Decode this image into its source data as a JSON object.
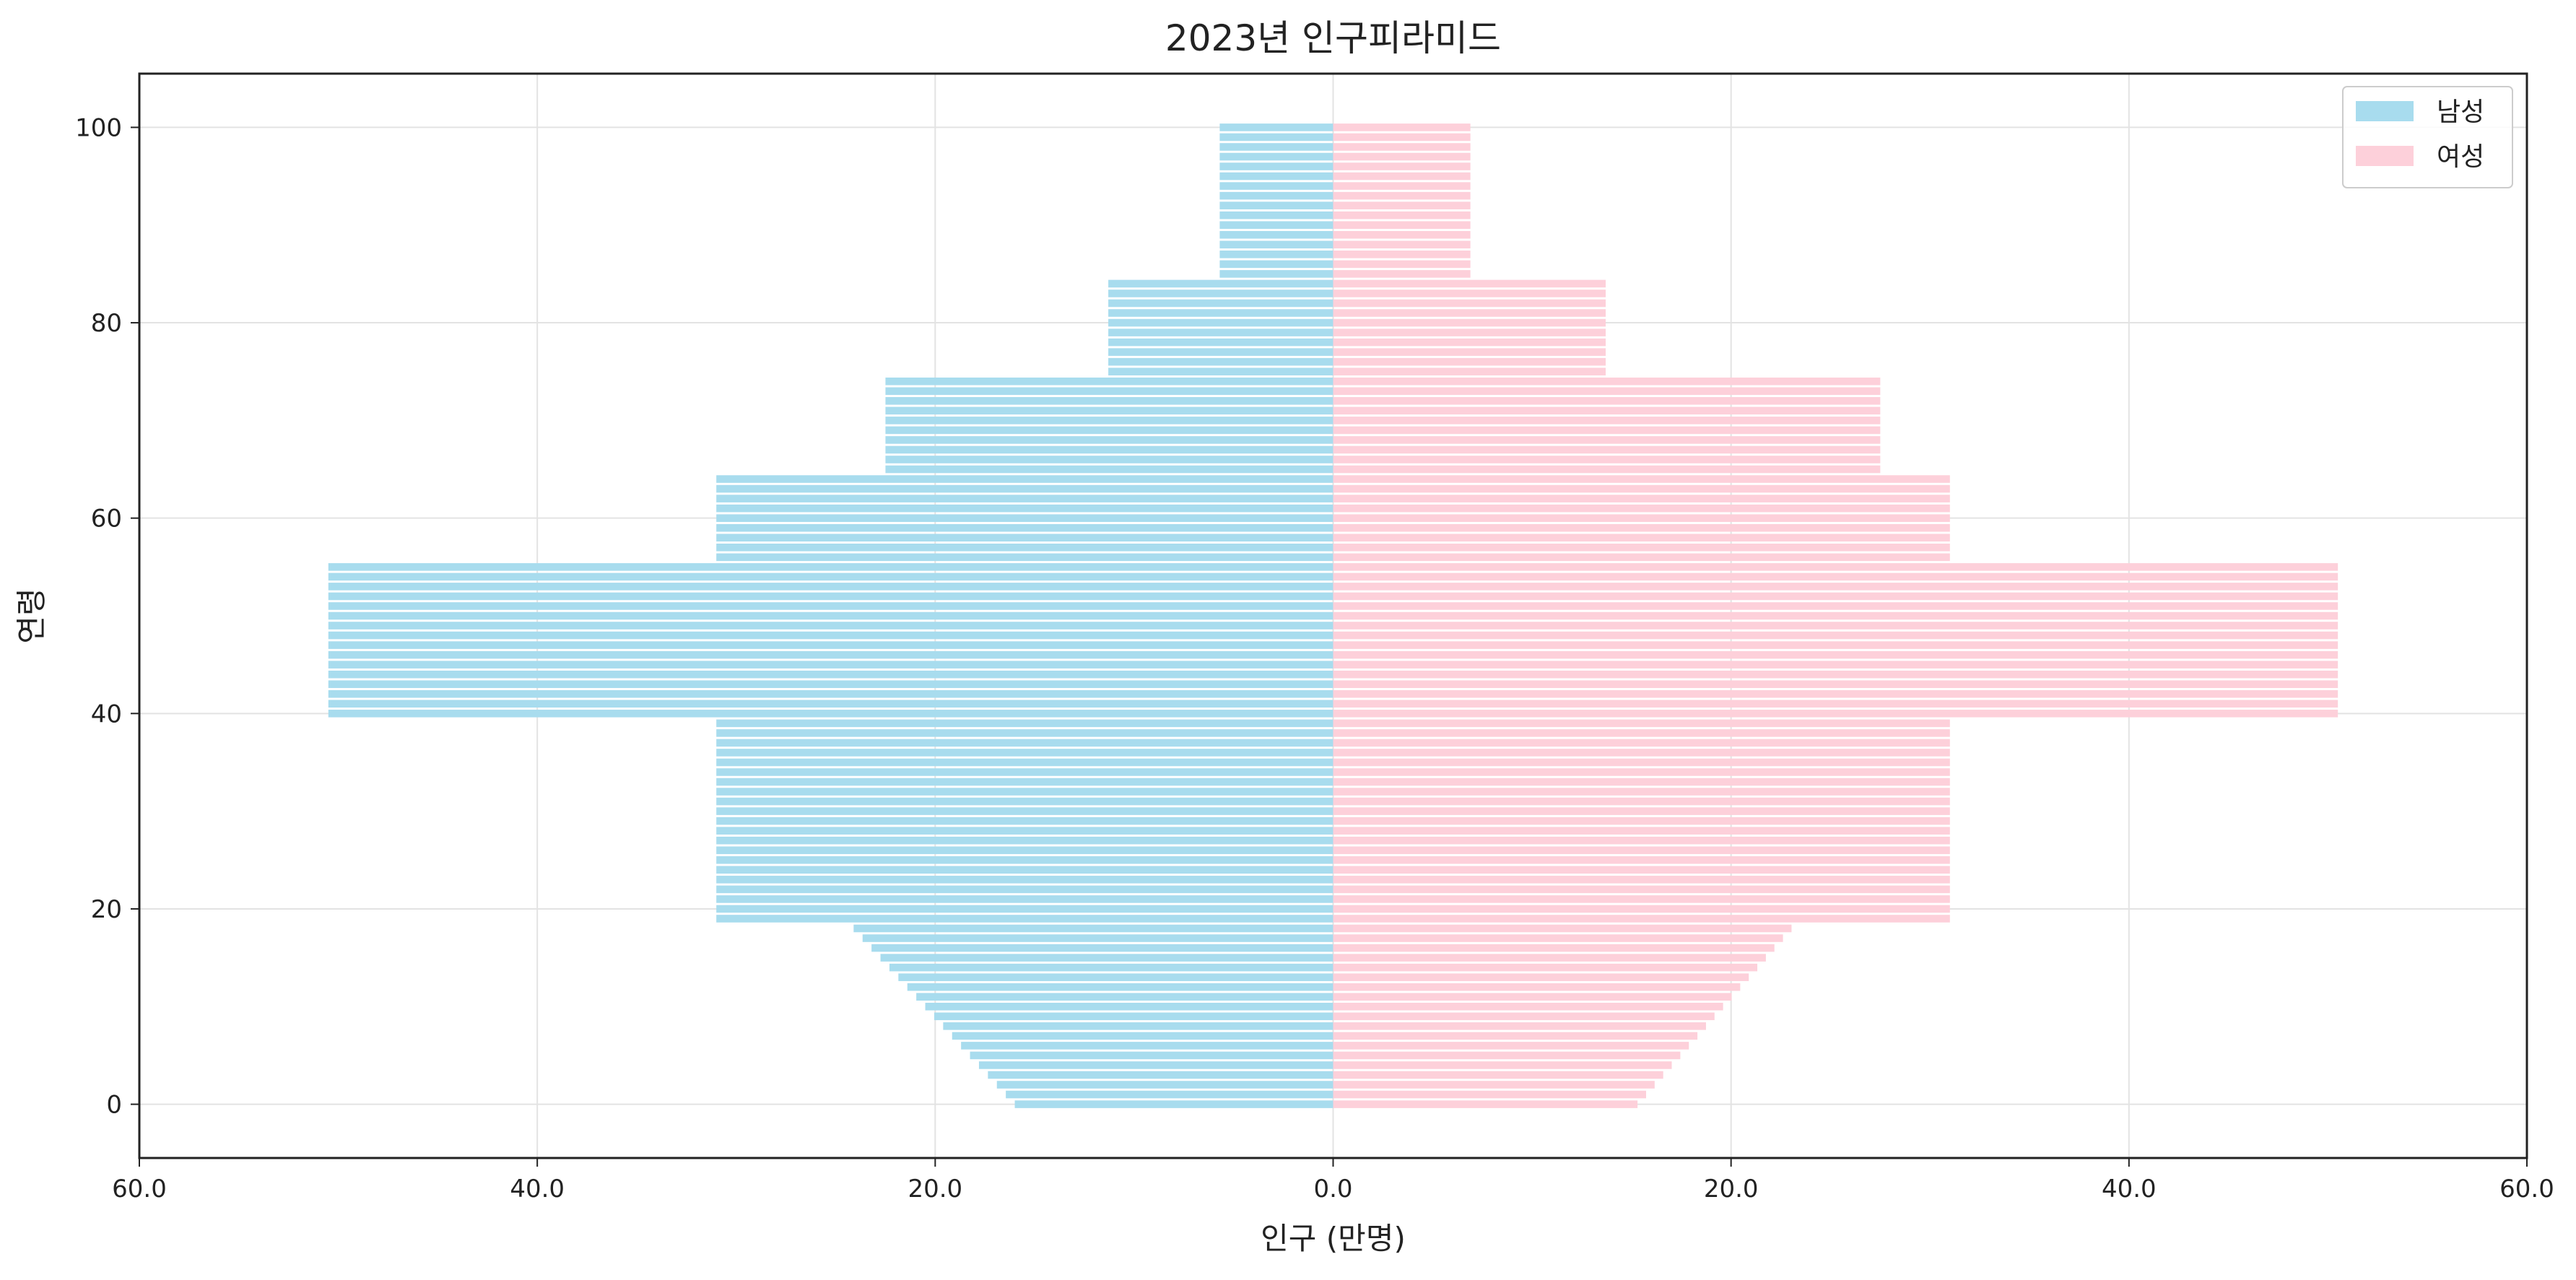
{
  "chart_data": {
    "type": "bar",
    "orientation": "horizontal",
    "layout": "population-pyramid",
    "title": "2023년 인구피라미드",
    "xlabel": "인구 (만명)",
    "ylabel": "연령",
    "xlim": [
      -60,
      60
    ],
    "ylim": [
      -5.5,
      105.5
    ],
    "x_ticks": [
      -60,
      -40,
      -20,
      0,
      20,
      40,
      60
    ],
    "x_tick_labels": [
      "60.0",
      "40.0",
      "20.0",
      "0.0",
      "20.0",
      "40.0",
      "60.0"
    ],
    "y_ticks": [
      0,
      20,
      40,
      60,
      80,
      100
    ],
    "y_tick_labels": [
      "0",
      "20",
      "40",
      "60",
      "80",
      "100"
    ],
    "grid": true,
    "legend_position": "top-right",
    "age_groups": [
      {
        "from": 0,
        "to": 18,
        "male_start": 16.0,
        "male_step": 0.45,
        "female_start": 15.3,
        "female_step": 0.43
      },
      {
        "from": 19,
        "to": 39,
        "male": 31.0,
        "female": 31.0
      },
      {
        "from": 40,
        "to": 55,
        "male": 50.5,
        "female": 50.5
      },
      {
        "from": 56,
        "to": 64,
        "male": 31.0,
        "female": 31.0
      },
      {
        "from": 65,
        "to": 74,
        "male": 22.5,
        "female": 27.5
      },
      {
        "from": 75,
        "to": 84,
        "male": 11.3,
        "female": 13.7
      },
      {
        "from": 85,
        "to": 100,
        "male": 5.7,
        "female": 6.9
      }
    ],
    "series": [
      {
        "name": "남성",
        "side": "left",
        "color": "#a8dcee"
      },
      {
        "name": "여성",
        "side": "right",
        "color": "#fdd0da"
      }
    ]
  }
}
